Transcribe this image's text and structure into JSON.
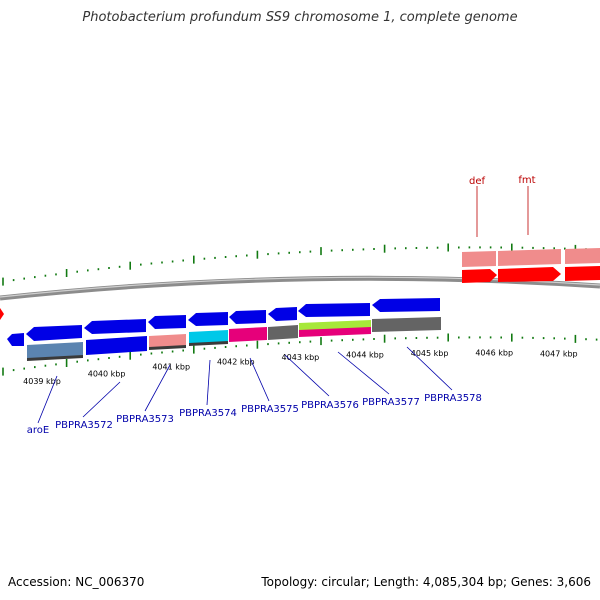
{
  "title": "Photobacterium profundum SS9 chromosome 1, complete genome",
  "footer": {
    "accession": "Accession: NC_006370",
    "stats": "Topology: circular; Length: 4,085,304 bp; Genes: 3,606"
  },
  "colors": {
    "blue": "#0000e6",
    "red": "#ff0000",
    "pink": "#f08c8c",
    "steel": "#5b84b0",
    "cyan": "#00c8e8",
    "magenta": "#e6007a",
    "lime": "#a6e83a",
    "gray": "#646464",
    "tick": "#127a12",
    "label_blue": "#0000aa",
    "label_red": "#bb0000"
  },
  "axis": {
    "start_kbp": 4039,
    "end_kbp": 4047,
    "ticks": [
      "4039 kbp",
      "4040 kbp",
      "4041 kbp",
      "4042 kbp",
      "4043 kbp",
      "4044 kbp",
      "4045 kbp",
      "4046 kbp",
      "4047 kbp"
    ]
  },
  "genes": [
    {
      "label": "aroE",
      "color": "label_blue",
      "side": "bottom"
    },
    {
      "label": "PBPRA3572",
      "color": "label_blue",
      "side": "bottom"
    },
    {
      "label": "PBPRA3573",
      "color": "label_blue",
      "side": "bottom"
    },
    {
      "label": "PBPRA3574",
      "color": "label_blue",
      "side": "bottom"
    },
    {
      "label": "PBPRA3575",
      "color": "label_blue",
      "side": "bottom"
    },
    {
      "label": "PBPRA3576",
      "color": "label_blue",
      "side": "bottom"
    },
    {
      "label": "PBPRA3577",
      "color": "label_blue",
      "side": "bottom"
    },
    {
      "label": "PBPRA3578",
      "color": "label_blue",
      "side": "bottom"
    },
    {
      "label": "def",
      "color": "label_red",
      "side": "top"
    },
    {
      "label": "fmt",
      "color": "label_red",
      "side": "top"
    }
  ]
}
